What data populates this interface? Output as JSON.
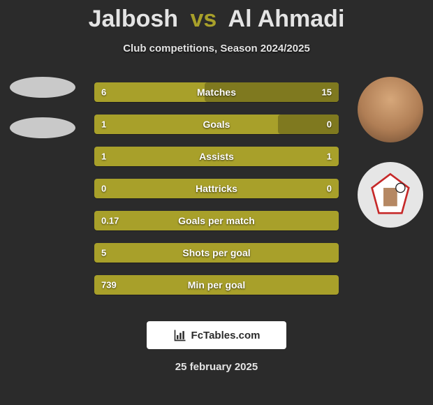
{
  "title": {
    "player1": "Jalbosh",
    "vs": "vs",
    "player2": "Al Ahmadi"
  },
  "subtitle": "Club competitions, Season 2024/2025",
  "colors": {
    "background": "#2b2b2b",
    "bar_base": "#a8a02a",
    "bar_fill": "#7f791f",
    "title_text": "#e4e4e4",
    "vs_text": "#a8a02a",
    "white": "#ffffff"
  },
  "bars": [
    {
      "label": "Matches",
      "left": "6",
      "right": "15",
      "fill_side": "right",
      "fill_pct": 55
    },
    {
      "label": "Goals",
      "left": "1",
      "right": "0",
      "fill_side": "right",
      "fill_pct": 25
    },
    {
      "label": "Assists",
      "left": "1",
      "right": "1",
      "fill_side": "none",
      "fill_pct": 0
    },
    {
      "label": "Hattricks",
      "left": "0",
      "right": "0",
      "fill_side": "none",
      "fill_pct": 0
    },
    {
      "label": "Goals per match",
      "left": "0.17",
      "right": "",
      "fill_side": "none",
      "fill_pct": 0
    },
    {
      "label": "Shots per goal",
      "left": "5",
      "right": "",
      "fill_side": "none",
      "fill_pct": 0
    },
    {
      "label": "Min per goal",
      "left": "739",
      "right": "",
      "fill_side": "none",
      "fill_pct": 0
    }
  ],
  "footer": {
    "brand": "FcTables.com",
    "date": "25 february 2025"
  },
  "avatars": {
    "left": [
      {
        "name": "player1-photo",
        "style": "flat"
      },
      {
        "name": "player1-club",
        "style": "flat"
      }
    ],
    "right": [
      {
        "name": "player2-photo",
        "style": "photo"
      },
      {
        "name": "player2-club",
        "style": "badge"
      }
    ]
  }
}
